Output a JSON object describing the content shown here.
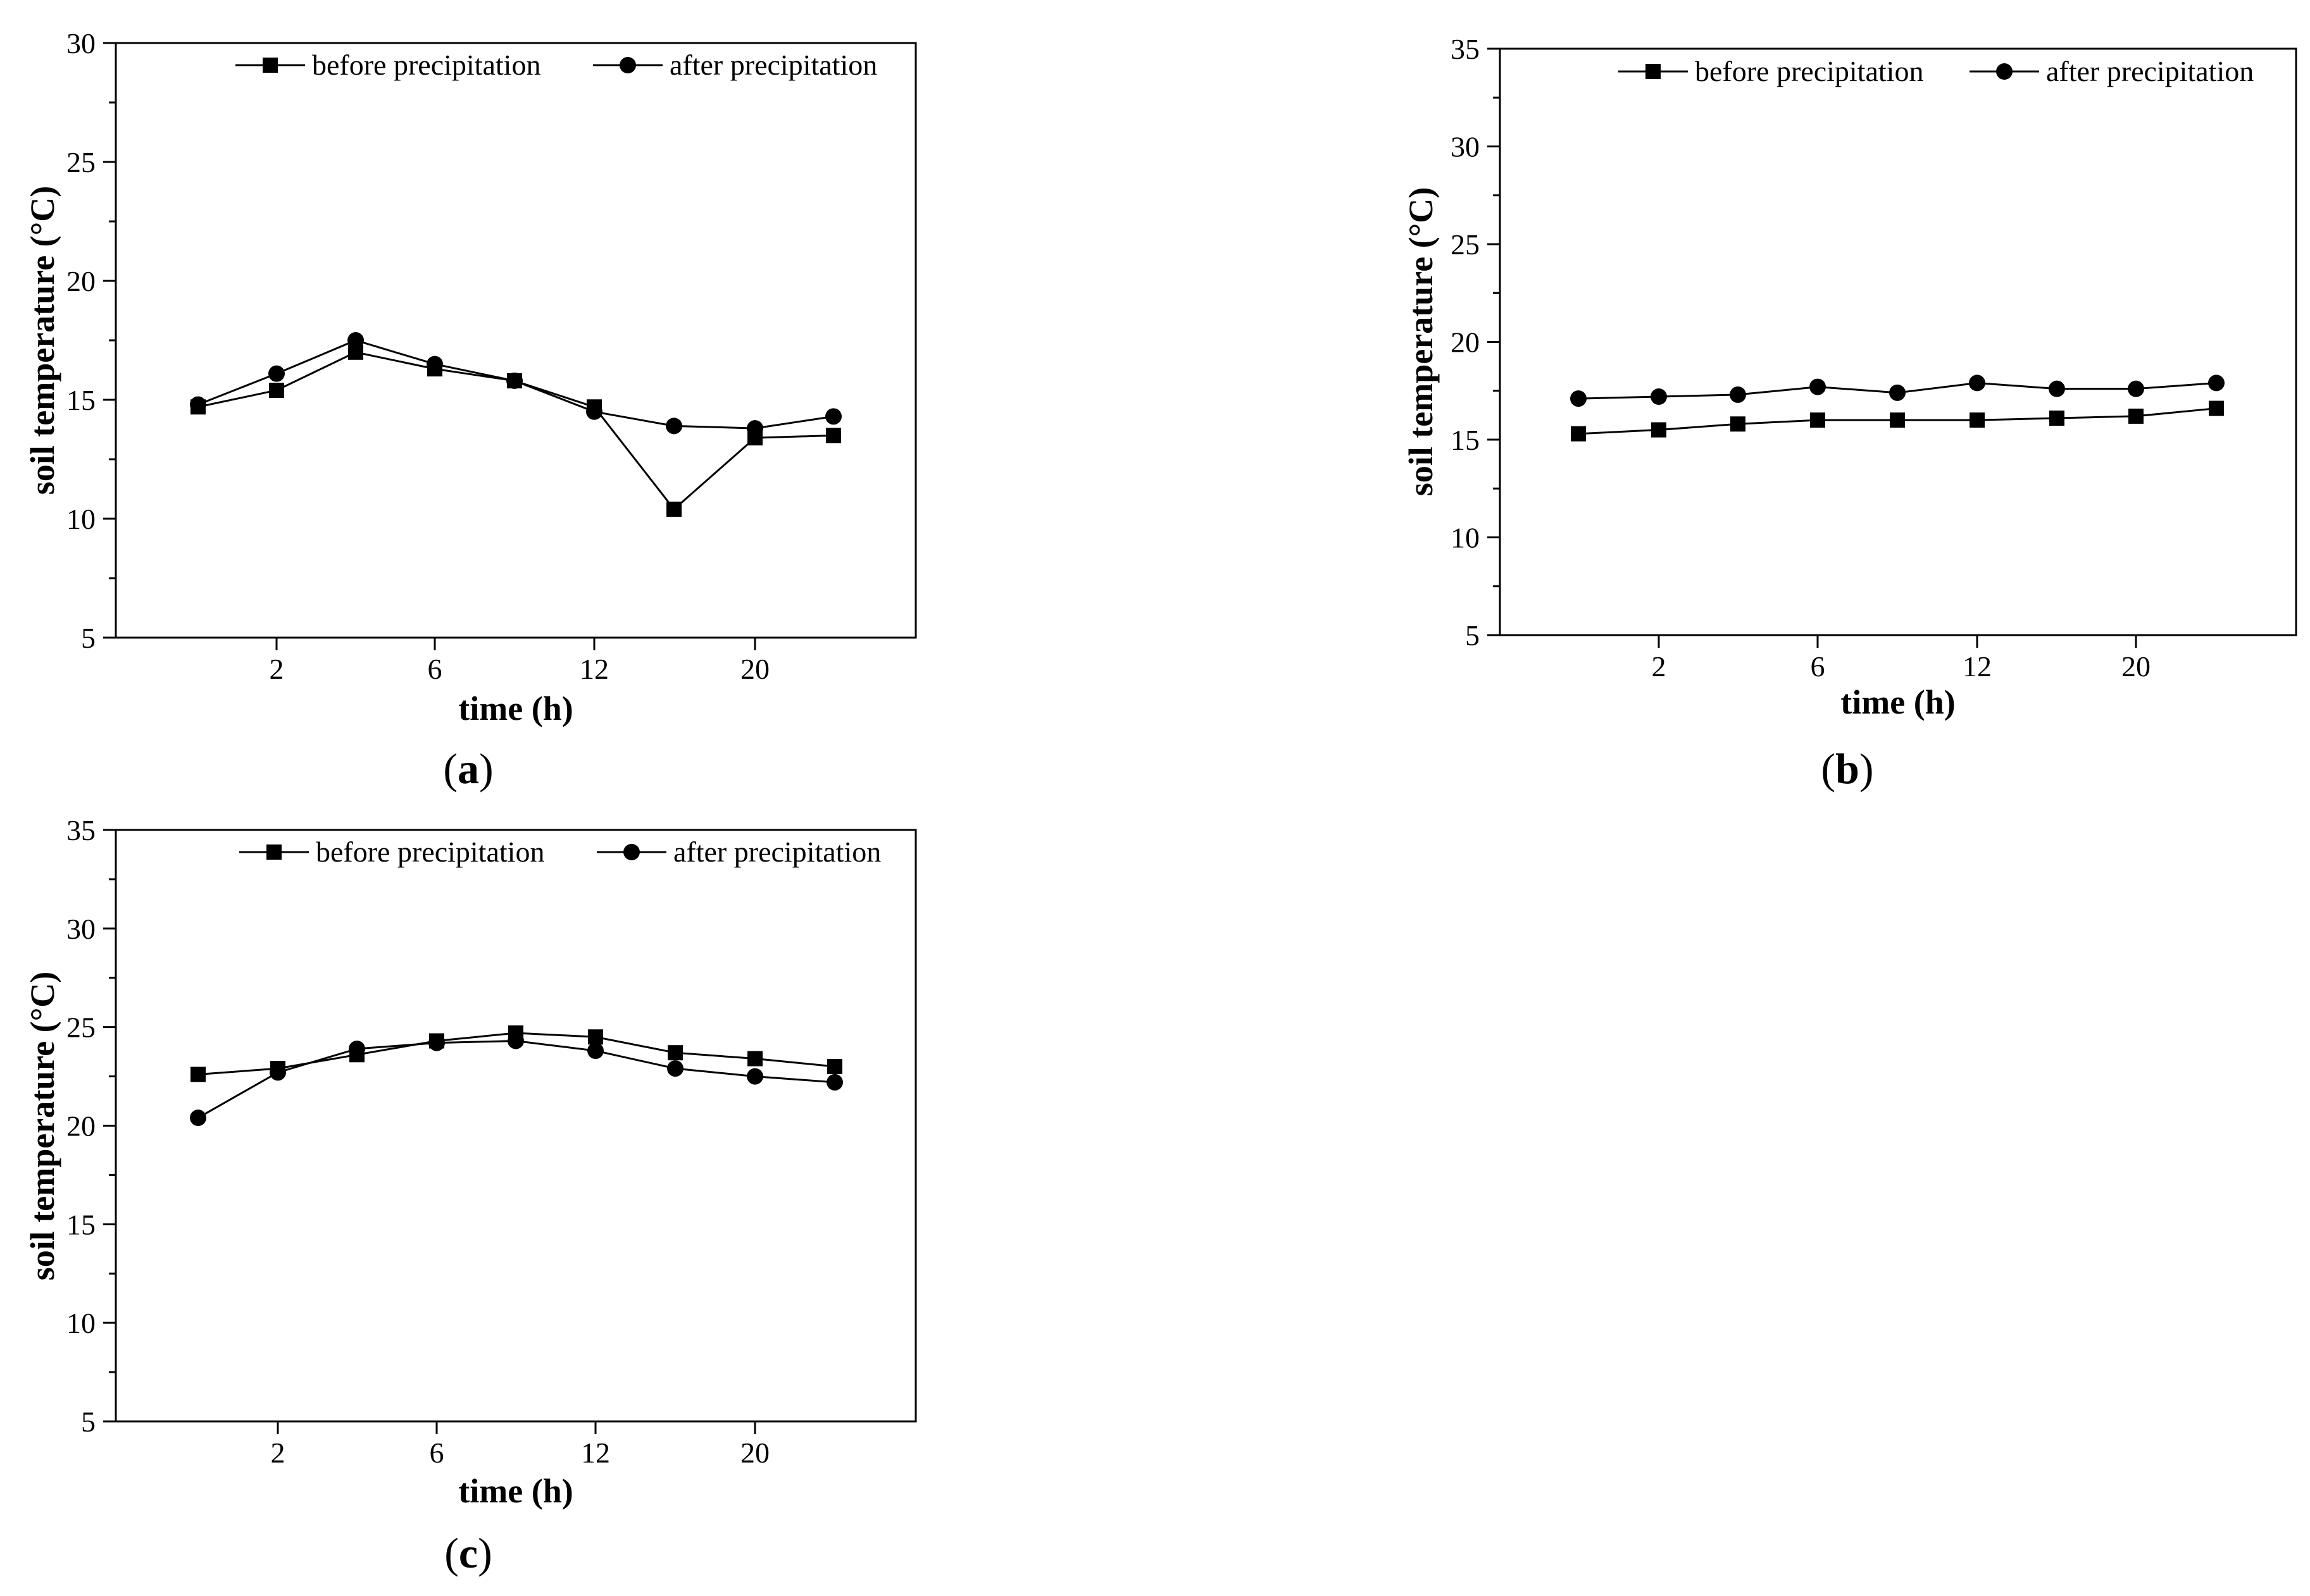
{
  "figure": {
    "captions": [
      {
        "open": "(",
        "letter": "a",
        "close": ")"
      },
      {
        "open": "(",
        "letter": "b",
        "close": ")"
      },
      {
        "open": "(",
        "letter": "c",
        "close": ")"
      }
    ]
  },
  "chart_data": [
    {
      "id": "a",
      "type": "line",
      "title": "",
      "xlabel": "time (h)",
      "ylabel": "soil temperature (°C)",
      "xticks": [
        "2",
        "6",
        "12",
        "20"
      ],
      "x": [
        "0",
        "2",
        "4",
        "6",
        "9",
        "12",
        "16",
        "20",
        "24"
      ],
      "ylim": [
        5,
        30
      ],
      "yticks": [
        5,
        10,
        15,
        20,
        25,
        30
      ],
      "ymajor_step": 5,
      "ylabels": [
        "5",
        "10",
        "15",
        "20",
        "25",
        "30"
      ],
      "legend": "top-right",
      "series": [
        {
          "name": "before precipitation",
          "marker": "square",
          "values": [
            14.7,
            15.4,
            17.0,
            16.3,
            15.8,
            14.7,
            10.4,
            13.4,
            13.5
          ]
        },
        {
          "name": "after precipitation",
          "marker": "circle",
          "values": [
            14.8,
            16.1,
            17.5,
            16.5,
            15.8,
            14.5,
            13.9,
            13.8,
            14.3
          ]
        }
      ]
    },
    {
      "id": "b",
      "type": "line",
      "title": "",
      "xlabel": "time (h)",
      "ylabel": "soil temperature (°C)",
      "xticks": [
        "2",
        "6",
        "12",
        "20"
      ],
      "x": [
        "0",
        "2",
        "4",
        "6",
        "9",
        "12",
        "16",
        "20",
        "24"
      ],
      "ylim": [
        5,
        35
      ],
      "ymajor_step": 5,
      "ylabels": [
        "5",
        "10",
        "15",
        "20",
        "25",
        "30",
        "35"
      ],
      "legend": "top-right",
      "series": [
        {
          "name": "before precipitation",
          "marker": "square",
          "values": [
            15.3,
            15.5,
            15.8,
            16.0,
            16.0,
            16.0,
            16.1,
            16.2,
            16.6
          ]
        },
        {
          "name": "after precipitation",
          "marker": "circle",
          "values": [
            17.1,
            17.2,
            17.3,
            17.7,
            17.4,
            17.9,
            17.6,
            17.6,
            17.9
          ]
        }
      ]
    },
    {
      "id": "c",
      "type": "line",
      "title": "",
      "xlabel": "time (h)",
      "ylabel": "soil temperature (°C)",
      "xticks": [
        "2",
        "6",
        "12",
        "20"
      ],
      "x": [
        "0",
        "2",
        "4",
        "6",
        "9",
        "12",
        "16",
        "20",
        "24"
      ],
      "ylim": [
        5,
        35
      ],
      "ymajor_step": 5,
      "ylabels": [
        "5",
        "10",
        "15",
        "20",
        "25",
        "30",
        "35"
      ],
      "legend": "top-right",
      "series": [
        {
          "name": "before precipitation",
          "marker": "square",
          "values": [
            22.6,
            22.9,
            23.6,
            24.3,
            24.7,
            24.5,
            23.7,
            23.4,
            23.0
          ]
        },
        {
          "name": "after precipitation",
          "marker": "circle",
          "values": [
            20.4,
            22.7,
            23.9,
            24.2,
            24.3,
            23.8,
            22.9,
            22.5,
            22.2
          ]
        }
      ]
    }
  ]
}
